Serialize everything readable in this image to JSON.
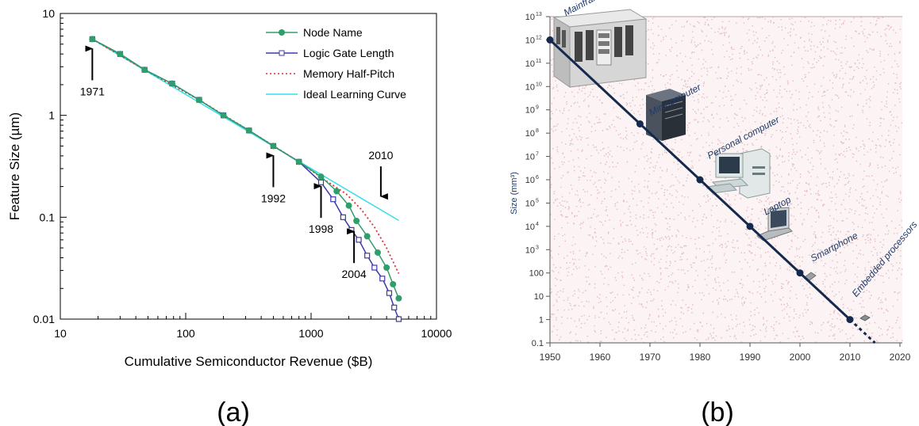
{
  "colors": {
    "node": "#2e9e6b",
    "logic": "#3b3ba8",
    "memory": "#e03030",
    "ideal": "#33e0e8",
    "chartB_line": "#14294d",
    "chartB_label": "#1f3a6b",
    "chartB_bg": "#fbf3f4",
    "chartB_noise": "#d9aab2"
  },
  "captions": {
    "a": "(a)",
    "b": "(b)"
  },
  "chart_data": [
    {
      "type": "line",
      "title": "",
      "xlabel": "Cumulative Semiconductor Revenue ($B)",
      "ylabel": "Feature Size (µm)",
      "xscale": "log",
      "yscale": "log",
      "xlim": [
        10,
        10000
      ],
      "ylim": [
        0.01,
        10
      ],
      "xticks": [
        {
          "v": 10,
          "label": "10"
        },
        {
          "v": 100,
          "label": "100"
        },
        {
          "v": 1000,
          "label": "1000"
        },
        {
          "v": 10000,
          "label": "10000"
        }
      ],
      "yticks": [
        {
          "v": 10,
          "label": "10"
        },
        {
          "v": 1,
          "label": "1"
        },
        {
          "v": 0.1,
          "label": "0.1"
        },
        {
          "v": 0.01,
          "label": "0.01"
        }
      ],
      "legend_position": "top-right",
      "series": [
        {
          "name": "Node Name",
          "style": "solid-circle",
          "color": "node",
          "points": [
            [
              18,
              5.6
            ],
            [
              30,
              4.0
            ],
            [
              47,
              2.8
            ],
            [
              78,
              2.05
            ],
            [
              128,
              1.42
            ],
            [
              200,
              1.0
            ],
            [
              320,
              0.71
            ],
            [
              500,
              0.5
            ],
            [
              800,
              0.35
            ],
            [
              1200,
              0.25
            ],
            [
              1600,
              0.18
            ],
            [
              2000,
              0.13
            ],
            [
              2300,
              0.092
            ],
            [
              2800,
              0.065
            ],
            [
              3400,
              0.045
            ],
            [
              4000,
              0.032
            ],
            [
              4500,
              0.022
            ],
            [
              5000,
              0.016
            ]
          ]
        },
        {
          "name": "Logic Gate Length",
          "style": "solid-square",
          "color": "logic",
          "points": [
            [
              18,
              5.6
            ],
            [
              30,
              4.0
            ],
            [
              47,
              2.8
            ],
            [
              78,
              2.05
            ],
            [
              128,
              1.42
            ],
            [
              200,
              1.0
            ],
            [
              320,
              0.71
            ],
            [
              500,
              0.5
            ],
            [
              800,
              0.35
            ],
            [
              1200,
              0.22
            ],
            [
              1500,
              0.15
            ],
            [
              1800,
              0.1
            ],
            [
              2100,
              0.075
            ],
            [
              2400,
              0.06
            ],
            [
              2800,
              0.042
            ],
            [
              3200,
              0.032
            ],
            [
              3700,
              0.025
            ],
            [
              4200,
              0.018
            ],
            [
              4600,
              0.013
            ],
            [
              5000,
              0.01
            ]
          ]
        },
        {
          "name": "Memory Half-Pitch",
          "style": "dotted",
          "color": "memory",
          "points": [
            [
              18,
              5.6
            ],
            [
              47,
              2.8
            ],
            [
              128,
              1.42
            ],
            [
              320,
              0.71
            ],
            [
              800,
              0.35
            ],
            [
              1300,
              0.23
            ],
            [
              1900,
              0.17
            ],
            [
              2500,
              0.12
            ],
            [
              3200,
              0.08
            ],
            [
              4000,
              0.05
            ],
            [
              5000,
              0.028
            ]
          ]
        },
        {
          "name": "Ideal Learning Curve",
          "style": "solid",
          "color": "ideal",
          "points": [
            [
              18,
              5.6
            ],
            [
              5000,
              0.093
            ]
          ]
        }
      ],
      "annotations": [
        {
          "label": "1971",
          "x": 18,
          "y": 5.6,
          "dir": "up"
        },
        {
          "label": "1992",
          "x": 500,
          "y": 0.5,
          "dir": "up"
        },
        {
          "label": "1998",
          "x": 1200,
          "y": 0.25,
          "dir": "up"
        },
        {
          "label": "2004",
          "x": 2200,
          "y": 0.09,
          "dir": "up"
        },
        {
          "label": "2010",
          "x": 3600,
          "y": 0.12,
          "dir": "down"
        }
      ]
    },
    {
      "type": "scatter",
      "title": "",
      "xlabel": "",
      "ylabel": "Size (mm³)",
      "yscale": "log",
      "xlim": [
        1950,
        2020
      ],
      "ylim": [
        0.1,
        10000000000000
      ],
      "xticks": [
        "1950",
        "1960",
        "1970",
        "1980",
        "1990",
        "2000",
        "2010",
        "2020"
      ],
      "yticks": [
        {
          "exp": 13,
          "label": "10",
          "sup": "13"
        },
        {
          "exp": 12,
          "label": "10",
          "sup": "12"
        },
        {
          "exp": 11,
          "label": "10",
          "sup": "11"
        },
        {
          "exp": 10,
          "label": "10",
          "sup": "10"
        },
        {
          "exp": 9,
          "label": "10",
          "sup": "9"
        },
        {
          "exp": 8,
          "label": "10",
          "sup": "8"
        },
        {
          "exp": 7,
          "label": "10",
          "sup": "7"
        },
        {
          "exp": 6,
          "label": "10",
          "sup": "6"
        },
        {
          "exp": 5,
          "label": "10",
          "sup": "5"
        },
        {
          "exp": 4,
          "label": "10",
          "sup": "4"
        },
        {
          "exp": 3,
          "label": "10",
          "sup": "3"
        },
        {
          "exp": 2,
          "label": "100",
          "sup": ""
        },
        {
          "exp": 1,
          "label": "10",
          "sup": ""
        },
        {
          "exp": 0,
          "label": "1",
          "sup": ""
        },
        {
          "exp": -1,
          "label": "0.1",
          "sup": ""
        }
      ],
      "trend": {
        "from": [
          1950,
          1000000000000
        ],
        "to": [
          2010,
          1
        ],
        "dashed_to": [
          2015,
          0.1
        ]
      },
      "points": [
        {
          "label": "Mainframe",
          "year": 1950,
          "size": 1000000000000,
          "icon": "mainframe-icon"
        },
        {
          "label": "Minicomputer",
          "year": 1968,
          "size": 250000000,
          "icon": "minicomputer-icon"
        },
        {
          "label": "Personal computer",
          "year": 1980,
          "size": 1000000,
          "icon": "personal-computer-icon"
        },
        {
          "label": "Laptop",
          "year": 1990,
          "size": 10000,
          "icon": "laptop-icon"
        },
        {
          "label": "Smartphone",
          "year": 2000,
          "size": 100,
          "icon": "smartphone-icon"
        },
        {
          "label": "Embedded processors",
          "year": 2010,
          "size": 1,
          "icon": "chip-icon"
        }
      ]
    }
  ]
}
